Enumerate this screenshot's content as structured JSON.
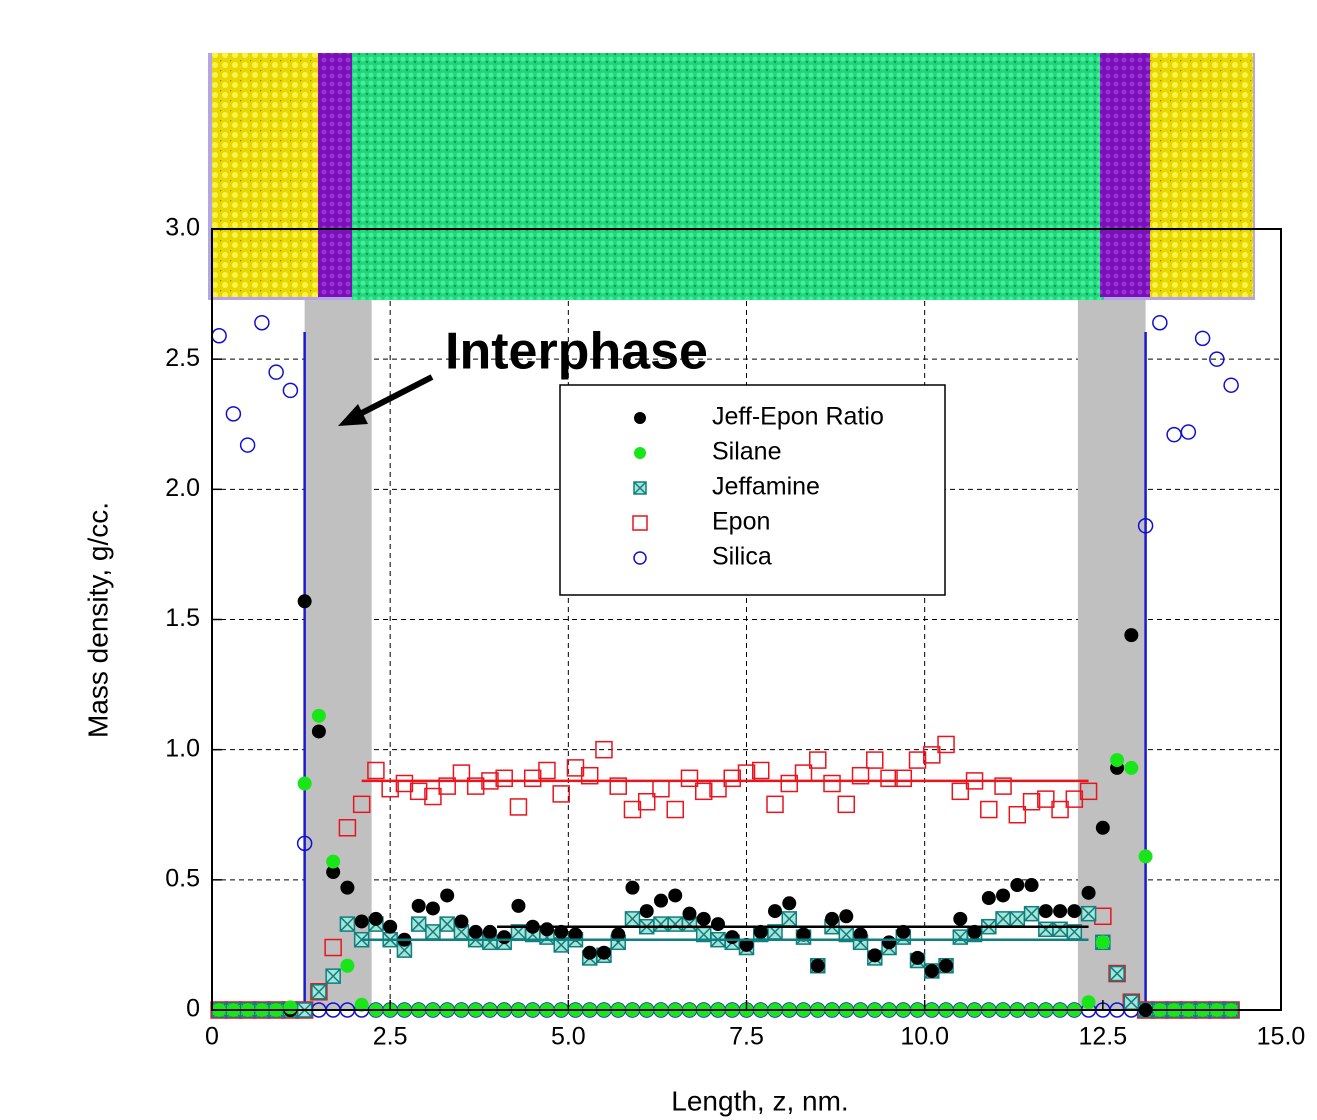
{
  "chart_data": {
    "type": "scatter",
    "x_label": "Length, z, nm.",
    "y_label": "Mass density, g/cc.",
    "annotation": "Interphase",
    "xlim": [
      0,
      15
    ],
    "ylim": [
      0,
      3
    ],
    "xticks": [
      0,
      2.5,
      {
        "value": 5,
        "label": "5.0"
      },
      7.5,
      {
        "value": 10,
        "label": "10.0"
      },
      12.5,
      {
        "value": 15,
        "label": "15.0"
      }
    ],
    "yticks": [
      0,
      0.5,
      {
        "value": 1,
        "label": "1.0"
      },
      1.5,
      {
        "value": 2,
        "label": "2.0"
      },
      2.5,
      {
        "value": 3,
        "label": "3.0"
      }
    ],
    "grid": true,
    "shaded_regions": [
      [
        1.3,
        2.24
      ],
      [
        12.15,
        13.1
      ]
    ],
    "wall_lines": [
      1.3,
      13.1
    ],
    "x": [
      0.1,
      0.3,
      0.5,
      0.7,
      0.9,
      1.1,
      1.3,
      1.5,
      1.7,
      1.9,
      2.1,
      2.3,
      2.5,
      2.7,
      2.9,
      3.1,
      3.3,
      3.5,
      3.7,
      3.9,
      4.1,
      4.3,
      4.5,
      4.7,
      4.9,
      5.1,
      5.3,
      5.5,
      5.7,
      5.9,
      6.1,
      6.3,
      6.5,
      6.7,
      6.9,
      7.1,
      7.3,
      7.5,
      7.7,
      7.9,
      8.1,
      8.3,
      8.5,
      8.7,
      8.9,
      9.1,
      9.3,
      9.5,
      9.7,
      9.9,
      10.1,
      10.3,
      10.5,
      10.7,
      10.9,
      11.1,
      11.3,
      11.5,
      11.7,
      11.9,
      12.1,
      12.3,
      12.5,
      12.7,
      12.9,
      13.1,
      13.3,
      13.5,
      13.7,
      13.9,
      14.1,
      14.3
    ],
    "series": [
      {
        "name": "Epon",
        "marker": "square-open",
        "color": "#e8141e",
        "values": [
          0,
          0,
          0,
          0,
          0,
          0,
          0,
          0.07,
          0.24,
          0.7,
          0.79,
          0.92,
          0.85,
          0.87,
          0.84,
          0.82,
          0.86,
          0.91,
          0.86,
          0.88,
          0.89,
          0.78,
          0.89,
          0.92,
          0.83,
          0.93,
          0.9,
          1.0,
          0.86,
          0.77,
          0.8,
          0.85,
          0.77,
          0.89,
          0.84,
          0.85,
          0.89,
          0.91,
          0.92,
          0.79,
          0.87,
          0.91,
          0.96,
          0.87,
          0.79,
          0.9,
          0.96,
          0.89,
          0.89,
          0.96,
          0.98,
          1.02,
          0.84,
          0.88,
          0.77,
          0.86,
          0.75,
          0.8,
          0.81,
          0.77,
          0.81,
          0.84,
          0.36,
          0.14,
          0.03,
          0,
          0,
          0,
          0,
          0,
          0,
          0
        ]
      },
      {
        "name": "Silica",
        "marker": "circle-open",
        "color": "#1010d0",
        "values": [
          2.59,
          2.29,
          2.17,
          2.64,
          2.45,
          2.38,
          0.64,
          0,
          0,
          0,
          0,
          0,
          0,
          0,
          0,
          0,
          0,
          0,
          0,
          0,
          0,
          0,
          0,
          0,
          0,
          0,
          0,
          0,
          0,
          0,
          0,
          0,
          0,
          0,
          0,
          0,
          0,
          0,
          0,
          0,
          0,
          0,
          0,
          0,
          0,
          0,
          0,
          0,
          0,
          0,
          0,
          0,
          0,
          0,
          0,
          0,
          0,
          0,
          0,
          0,
          0,
          0,
          0,
          0,
          0,
          1.86,
          2.64,
          2.21,
          2.22,
          2.58,
          2.5,
          2.4
        ]
      },
      {
        "name": "Jeffamine",
        "marker": "square-x",
        "color": "#0f7f80",
        "values": [
          0,
          0,
          0,
          0,
          0,
          0,
          0,
          0.07,
          0.13,
          0.33,
          0.27,
          0.33,
          0.27,
          0.23,
          0.33,
          0.3,
          0.33,
          0.3,
          0.27,
          0.26,
          0.26,
          0.3,
          0.29,
          0.28,
          0.25,
          0.27,
          0.2,
          0.21,
          0.26,
          0.35,
          0.32,
          0.33,
          0.33,
          0.33,
          0.29,
          0.27,
          0.26,
          0.24,
          0.29,
          0.3,
          0.35,
          0.28,
          0.17,
          0.32,
          0.29,
          0.26,
          0.2,
          0.24,
          0.28,
          0.19,
          0.15,
          0.17,
          0.28,
          0.29,
          0.32,
          0.35,
          0.35,
          0.37,
          0.31,
          0.31,
          0.3,
          0.37,
          0.26,
          0.14,
          0.03,
          0,
          0,
          0,
          0,
          0,
          0,
          0
        ]
      },
      {
        "name": "Jeff-Epon Ratio",
        "marker": "circle-filled",
        "color": "#000000",
        "values": [
          0,
          0,
          0,
          0,
          0,
          0,
          1.57,
          1.07,
          0.53,
          0.47,
          0.34,
          0.35,
          0.32,
          0.27,
          0.4,
          0.39,
          0.44,
          0.34,
          0.3,
          0.3,
          0.28,
          0.4,
          0.32,
          0.31,
          0.3,
          0.29,
          0.22,
          0.22,
          0.29,
          0.47,
          0.38,
          0.42,
          0.44,
          0.37,
          0.35,
          0.33,
          0.28,
          0.25,
          0.3,
          0.38,
          0.41,
          0.29,
          0.17,
          0.35,
          0.36,
          0.29,
          0.21,
          0.26,
          0.3,
          0.2,
          0.15,
          0.17,
          0.35,
          0.3,
          0.43,
          0.44,
          0.48,
          0.48,
          0.38,
          0.38,
          0.38,
          0.45,
          0.7,
          0.93,
          1.44,
          0,
          0,
          0,
          0,
          0,
          0,
          0
        ]
      },
      {
        "name": "Silane",
        "marker": "circle-filled",
        "color": "#19e619",
        "values": [
          0,
          0,
          0,
          0,
          0,
          0.01,
          0.87,
          1.13,
          0.57,
          0.17,
          0.02,
          0,
          0,
          0,
          0,
          0,
          0,
          0,
          0,
          0,
          0,
          0,
          0,
          0,
          0,
          0,
          0,
          0,
          0,
          0,
          0,
          0,
          0,
          0,
          0,
          0,
          0,
          0,
          0,
          0,
          0,
          0,
          0,
          0,
          0,
          0,
          0,
          0,
          0,
          0,
          0,
          0,
          0,
          0,
          0,
          0,
          0,
          0,
          0,
          0,
          0,
          0.03,
          0.26,
          0.96,
          0.93,
          0.59,
          0,
          0,
          0,
          0,
          0,
          0
        ]
      }
    ],
    "legend_order": [
      3,
      4,
      2,
      0,
      1
    ],
    "fits": [
      {
        "color": "#e8141e",
        "x": [
          2.1,
          12.3
        ],
        "y": [
          0.88,
          0.88
        ]
      },
      {
        "color": "#000000",
        "x": [
          4.0,
          12.3
        ],
        "y": [
          0.32,
          0.32
        ]
      },
      {
        "color": "#0f7f80",
        "x": [
          2.1,
          12.3
        ],
        "y": [
          0.27,
          0.27
        ]
      }
    ]
  }
}
